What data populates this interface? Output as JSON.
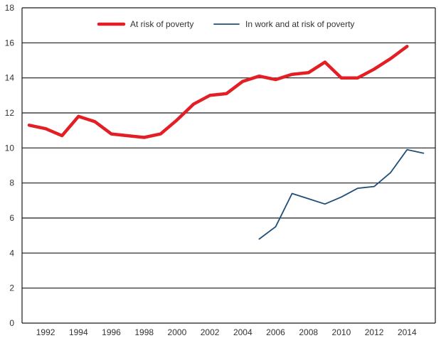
{
  "chart_data": {
    "type": "line",
    "title": "",
    "xlabel": "",
    "ylabel": "",
    "xlim": [
      1990.9,
      2015.7
    ],
    "ylim": [
      0,
      18
    ],
    "grid": true,
    "legend_position": "top-center",
    "y_ticks": [
      0,
      2,
      4,
      6,
      8,
      10,
      12,
      14,
      16,
      18
    ],
    "x_ticks": [
      1992,
      1994,
      1996,
      1998,
      2000,
      2002,
      2004,
      2006,
      2008,
      2010,
      2012,
      2014
    ],
    "series": [
      {
        "name": "At risk of poverty",
        "color": "#e31e24",
        "x": [
          1991,
          1992,
          1993,
          1994,
          1995,
          1996,
          1997,
          1998,
          1999,
          2000,
          2001,
          2002,
          2003,
          2004,
          2005,
          2006,
          2007,
          2008,
          2009,
          2010,
          2011,
          2012,
          2013,
          2014
        ],
        "values": [
          11.3,
          11.1,
          10.7,
          11.8,
          11.5,
          10.8,
          10.7,
          10.6,
          10.8,
          11.6,
          12.5,
          13.0,
          13.1,
          13.8,
          14.1,
          13.9,
          14.2,
          14.3,
          14.9,
          14.0,
          14.0,
          14.5,
          15.1,
          15.8
        ]
      },
      {
        "name": "In work and at risk of poverty",
        "color": "#1f4e79",
        "x": [
          2005,
          2006,
          2007,
          2008,
          2009,
          2010,
          2011,
          2012,
          2013,
          2014,
          2015
        ],
        "values": [
          4.8,
          5.5,
          7.4,
          7.1,
          6.8,
          7.2,
          7.7,
          7.8,
          8.6,
          9.9,
          9.7
        ]
      }
    ]
  }
}
